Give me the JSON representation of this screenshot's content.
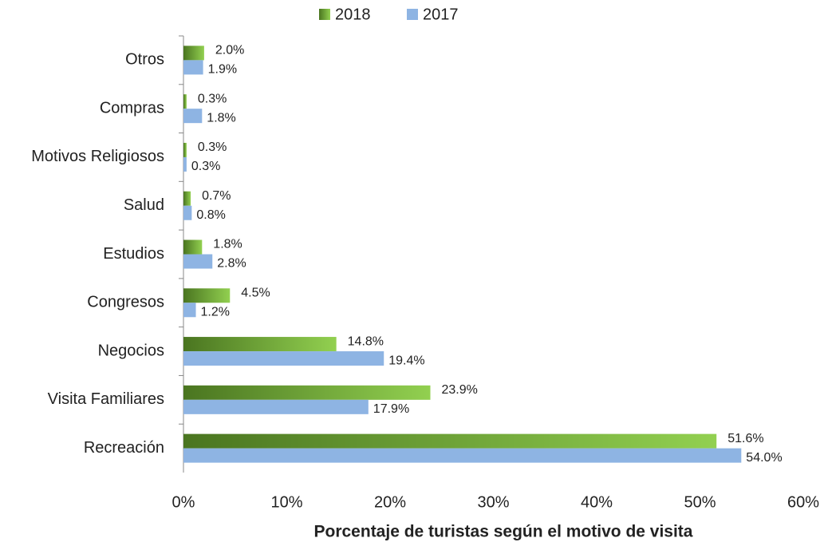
{
  "chart_data": {
    "type": "bar",
    "orientation": "horizontal",
    "x_axis_label": "Porcentaje de turistas según el motivo de visita",
    "categories": [
      "Otros",
      "Compras",
      "Motivos Religiosos",
      "Salud",
      "Estudios",
      "Congresos",
      "Negocios",
      "Visita Familiares",
      "Recreación"
    ],
    "series": [
      {
        "name": "2018",
        "color": "#92d050",
        "values": [
          2.0,
          0.3,
          0.3,
          0.7,
          1.8,
          4.5,
          14.8,
          23.9,
          51.6
        ],
        "value_labels": [
          "2.0%",
          "0.3%",
          "0.3%",
          "0.7%",
          "1.8%",
          "4.5%",
          "14.8%",
          "23.9%",
          "51.6%"
        ]
      },
      {
        "name": "2017",
        "color": "#8eb4e3",
        "values": [
          1.9,
          1.8,
          0.3,
          0.8,
          2.8,
          1.2,
          19.4,
          17.9,
          54.0
        ],
        "value_labels": [
          "1.9%",
          "1.8%",
          "0.3%",
          "0.8%",
          "2.8%",
          "1.2%",
          "19.4%",
          "17.9%",
          "54.0%"
        ]
      }
    ],
    "xlim": [
      0,
      60
    ],
    "xticks": [
      {
        "value": 0,
        "label": "0%"
      },
      {
        "value": 10,
        "label": "10%"
      },
      {
        "value": 20,
        "label": "20%"
      },
      {
        "value": 30,
        "label": "30%"
      },
      {
        "value": 40,
        "label": "40%"
      },
      {
        "value": 50,
        "label": "50%"
      },
      {
        "value": 60,
        "label": "60%"
      }
    ],
    "legend": "top",
    "grid": false
  }
}
